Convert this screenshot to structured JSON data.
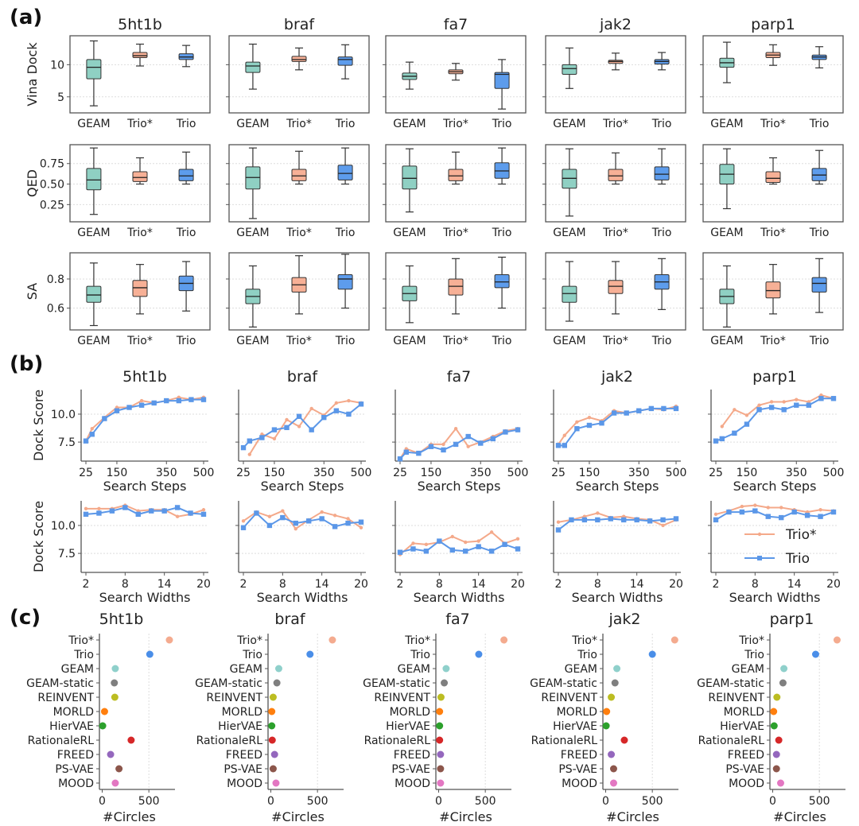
{
  "panels": [
    {
      "label": "(a)"
    },
    {
      "label": "(b)"
    },
    {
      "label": "(c)"
    }
  ],
  "targets": [
    "5ht1b",
    "braf",
    "fa7",
    "jak2",
    "parp1"
  ],
  "colors": {
    "GEAM": "#8fd0c3",
    "Trio*": "#f7b096",
    "Trio": "#5d9cec",
    "line_trio_star": "#f4a98a",
    "line_trio": "#5b97e8",
    "grid": "#dddddd",
    "axis": "#555555"
  },
  "chart_data": [
    {
      "type": "box",
      "panel": "(a)",
      "methods": [
        "GEAM",
        "Trio*",
        "Trio"
      ],
      "rows": [
        {
          "ylabel": "Vina Dock",
          "yticks": [
            5,
            10
          ],
          "ylim": [
            2.5,
            14.5
          ],
          "boxes": {
            "5ht1b": [
              [
                3.6,
                7.8,
                9.6,
                10.8,
                13.7
              ],
              [
                9.8,
                11.1,
                11.4,
                11.9,
                13.2
              ],
              [
                9.7,
                10.8,
                11.2,
                11.7,
                13.0
              ]
            ],
            "braf": [
              [
                6.2,
                8.8,
                9.8,
                10.4,
                13.2
              ],
              [
                9.2,
                10.5,
                10.8,
                11.3,
                12.6
              ],
              [
                7.8,
                9.9,
                10.8,
                11.2,
                13.1
              ]
            ],
            "fa7": [
              [
                6.2,
                7.7,
                8.2,
                8.7,
                10.4
              ],
              [
                7.6,
                8.6,
                8.9,
                9.2,
                10.2
              ],
              [
                3.1,
                6.3,
                8.5,
                8.8,
                10.8
              ]
            ],
            "jak2": [
              [
                6.3,
                8.5,
                9.4,
                10.0,
                12.6
              ],
              [
                9.2,
                10.2,
                10.5,
                10.7,
                11.8
              ],
              [
                9.2,
                10.1,
                10.5,
                10.8,
                11.9
              ]
            ],
            "parp1": [
              [
                7.2,
                9.6,
                10.3,
                11.0,
                13.5
              ],
              [
                9.9,
                11.1,
                11.5,
                11.9,
                13.1
              ],
              [
                9.5,
                10.8,
                11.2,
                11.5,
                12.8
              ]
            ]
          }
        },
        {
          "ylabel": "QED",
          "yticks": [
            0.25,
            0.5,
            0.75
          ],
          "ylim": [
            0.04,
            0.98
          ],
          "boxes": {
            "5ht1b": [
              [
                0.13,
                0.43,
                0.55,
                0.69,
                0.94
              ],
              [
                0.5,
                0.53,
                0.58,
                0.65,
                0.82
              ],
              [
                0.5,
                0.54,
                0.6,
                0.68,
                0.89
              ]
            ],
            "braf": [
              [
                0.08,
                0.44,
                0.58,
                0.71,
                0.94
              ],
              [
                0.5,
                0.54,
                0.6,
                0.68,
                0.9
              ],
              [
                0.5,
                0.55,
                0.63,
                0.73,
                0.94
              ]
            ],
            "fa7": [
              [
                0.16,
                0.44,
                0.57,
                0.72,
                0.93
              ],
              [
                0.5,
                0.54,
                0.6,
                0.68,
                0.89
              ],
              [
                0.5,
                0.57,
                0.66,
                0.76,
                0.94
              ]
            ],
            "jak2": [
              [
                0.11,
                0.45,
                0.57,
                0.68,
                0.93
              ],
              [
                0.5,
                0.54,
                0.6,
                0.68,
                0.88
              ],
              [
                0.5,
                0.55,
                0.62,
                0.71,
                0.93
              ]
            ],
            "parp1": [
              [
                0.2,
                0.5,
                0.62,
                0.74,
                0.93
              ],
              [
                0.5,
                0.52,
                0.57,
                0.65,
                0.82
              ],
              [
                0.5,
                0.54,
                0.61,
                0.69,
                0.91
              ]
            ]
          }
        },
        {
          "ylabel": "SA",
          "yticks": [
            0.6,
            0.8
          ],
          "ylim": [
            0.45,
            0.98
          ],
          "boxes": {
            "5ht1b": [
              [
                0.48,
                0.64,
                0.69,
                0.75,
                0.91
              ],
              [
                0.56,
                0.68,
                0.74,
                0.79,
                0.9
              ],
              [
                0.58,
                0.72,
                0.77,
                0.82,
                0.92
              ]
            ],
            "braf": [
              [
                0.47,
                0.63,
                0.68,
                0.73,
                0.89
              ],
              [
                0.56,
                0.71,
                0.76,
                0.81,
                0.96
              ],
              [
                0.6,
                0.73,
                0.8,
                0.83,
                0.97
              ]
            ],
            "fa7": [
              [
                0.5,
                0.65,
                0.7,
                0.75,
                0.89
              ],
              [
                0.56,
                0.69,
                0.75,
                0.8,
                0.94
              ],
              [
                0.6,
                0.74,
                0.78,
                0.83,
                0.95
              ]
            ],
            "jak2": [
              [
                0.51,
                0.64,
                0.7,
                0.75,
                0.92
              ],
              [
                0.56,
                0.7,
                0.75,
                0.79,
                0.92
              ],
              [
                0.59,
                0.73,
                0.78,
                0.83,
                0.94
              ]
            ],
            "parp1": [
              [
                0.47,
                0.63,
                0.68,
                0.73,
                0.89
              ],
              [
                0.56,
                0.67,
                0.72,
                0.78,
                0.9
              ],
              [
                0.57,
                0.71,
                0.77,
                0.81,
                0.94
              ]
            ]
          }
        }
      ]
    },
    {
      "type": "line",
      "panel": "(b)",
      "legend": [
        "Trio*",
        "Trio"
      ],
      "legend_position": "lower-right (parp1 width plot)",
      "rows": [
        {
          "ylabel": "Dock Score",
          "xlabel": "Search Steps",
          "x": [
            25,
            50,
            100,
            150,
            200,
            250,
            300,
            350,
            400,
            450,
            500
          ],
          "xticks": [
            25,
            150,
            350,
            500
          ],
          "yticks": [
            7.5,
            10.0
          ],
          "ylim": [
            5.8,
            12.2
          ],
          "series": {
            "5ht1b": {
              "Trio*": [
                7.6,
                8.7,
                9.7,
                10.6,
                10.6,
                11.2,
                11.0,
                11.2,
                11.5,
                11.3,
                11.5
              ],
              "Trio": [
                7.6,
                8.2,
                9.6,
                10.3,
                10.6,
                10.8,
                11.0,
                11.2,
                11.2,
                11.3,
                11.3
              ]
            },
            "braf": {
              "Trio*": [
                null,
                6.4,
                8.2,
                7.8,
                9.5,
                8.9,
                10.5,
                9.9,
                11.0,
                11.2,
                11.0
              ],
              "Trio": [
                7.0,
                7.6,
                7.9,
                8.6,
                8.8,
                9.8,
                8.6,
                9.7,
                10.3,
                10.0,
                10.9
              ]
            },
            "fa7": {
              "Trio*": [
                6.0,
                6.9,
                6.5,
                7.3,
                7.3,
                8.7,
                7.1,
                7.5,
                8.0,
                8.5,
                8.7
              ],
              "Trio": [
                6.0,
                6.6,
                6.5,
                7.1,
                6.8,
                7.3,
                8.0,
                7.4,
                7.8,
                8.4,
                8.6
              ]
            },
            "jak2": {
              "Trio*": [
                7.3,
                8.1,
                9.3,
                9.7,
                9.4,
                10.3,
                10.1,
                10.3,
                10.5,
                10.4,
                10.7
              ],
              "Trio": [
                7.2,
                7.2,
                8.7,
                9.0,
                9.2,
                10.1,
                10.1,
                10.3,
                10.5,
                10.5,
                10.5
              ]
            },
            "parp1": {
              "Trio*": [
                null,
                8.9,
                10.4,
                9.9,
                10.8,
                11.1,
                11.1,
                11.3,
                11.1,
                11.7,
                11.4
              ],
              "Trio": [
                7.6,
                7.8,
                8.3,
                9.1,
                10.4,
                10.6,
                10.4,
                10.8,
                10.8,
                11.4,
                11.4
              ]
            }
          }
        },
        {
          "ylabel": "Dock Score",
          "xlabel": "Search Widths",
          "x": [
            2,
            4,
            6,
            8,
            10,
            12,
            14,
            16,
            18,
            20
          ],
          "xticks": [
            2,
            8,
            14,
            20
          ],
          "yticks": [
            7.5,
            10.0
          ],
          "ylim": [
            5.8,
            12.2
          ],
          "series": {
            "5ht1b": {
              "Trio*": [
                11.5,
                11.5,
                11.5,
                11.8,
                11.3,
                11.4,
                11.4,
                10.8,
                11.0,
                11.4
              ],
              "Trio": [
                11.0,
                11.1,
                11.3,
                11.6,
                11.0,
                11.3,
                11.3,
                11.6,
                11.1,
                11.0
              ]
            },
            "braf": {
              "Trio*": [
                10.4,
                11.2,
                10.8,
                11.3,
                9.7,
                10.5,
                11.2,
                10.9,
                10.6,
                9.8
              ],
              "Trio": [
                9.8,
                11.1,
                10.0,
                10.7,
                10.2,
                10.4,
                10.6,
                9.9,
                10.2,
                10.3
              ]
            },
            "fa7": {
              "Trio*": [
                7.4,
                8.4,
                8.3,
                8.5,
                9.0,
                8.5,
                8.6,
                9.4,
                8.4,
                8.8
              ],
              "Trio": [
                7.6,
                7.9,
                7.7,
                8.6,
                7.8,
                7.7,
                8.1,
                7.7,
                8.3,
                7.9
              ]
            },
            "jak2": {
              "Trio*": [
                10.3,
                10.5,
                10.8,
                11.1,
                10.7,
                10.8,
                10.6,
                10.5,
                10.0,
                10.5
              ],
              "Trio": [
                9.6,
                10.5,
                10.5,
                10.5,
                10.6,
                10.5,
                10.5,
                10.4,
                10.5,
                10.6
              ]
            },
            "parp1": {
              "Trio*": [
                11.0,
                11.3,
                11.7,
                11.8,
                11.6,
                11.6,
                11.4,
                11.2,
                11.4,
                11.3
              ],
              "Trio": [
                10.5,
                11.2,
                11.2,
                11.3,
                10.8,
                10.7,
                11.2,
                10.9,
                10.8,
                11.2
              ]
            }
          }
        }
      ]
    },
    {
      "type": "scatter",
      "panel": "(c)",
      "xlabel": "#Circles",
      "xticks": [
        0,
        500
      ],
      "xlim": [
        -30,
        780
      ],
      "methods": [
        "Trio*",
        "Trio",
        "GEAM",
        "GEAM-static",
        "REINVENT",
        "MORLD",
        "HierVAE",
        "RationaleRL",
        "FREED",
        "PS-VAE",
        "MOOD"
      ],
      "method_colors": [
        "#f4ab8f",
        "#4a8ee8",
        "#8fd0cb",
        "#7f7f7f",
        "#bcbd22",
        "#ff7f0e",
        "#2ca02c",
        "#d62728",
        "#9467bd",
        "#8c564b",
        "#e377c2"
      ],
      "values": {
        "5ht1b": [
          720,
          510,
          140,
          130,
          135,
          25,
          5,
          310,
          90,
          180,
          140
        ],
        "braf": [
          660,
          420,
          85,
          65,
          25,
          10,
          10,
          15,
          40,
          25,
          55
        ],
        "fa7": [
          700,
          430,
          80,
          60,
          25,
          10,
          10,
          10,
          20,
          20,
          20
        ],
        "jak2": [
          740,
          500,
          120,
          100,
          60,
          10,
          5,
          200,
          60,
          85,
          85
        ],
        "parp1": [
          690,
          460,
          120,
          110,
          45,
          10,
          15,
          65,
          40,
          40,
          85
        ]
      }
    }
  ]
}
